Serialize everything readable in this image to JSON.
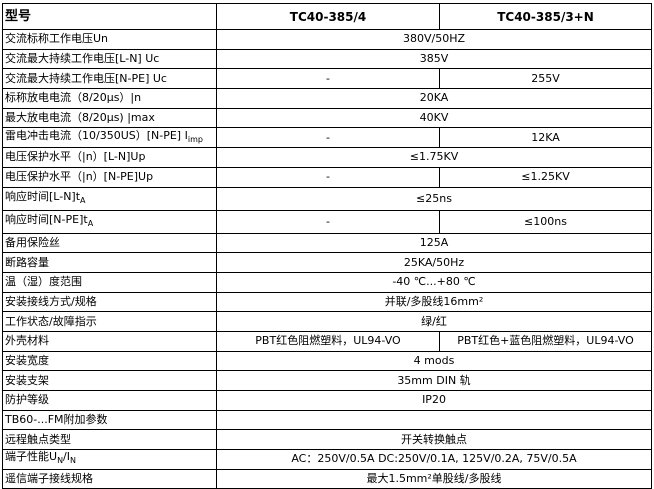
{
  "header": {
    "label": "型号",
    "model_a": "TC40-385/4",
    "model_b": "TC40-385/3+N"
  },
  "rows": [
    {
      "label": "交流标称工作电压Un",
      "value": "380V/50HZ"
    },
    {
      "label": "交流最大持续工作电压[L-N] Uc",
      "value": "385V"
    },
    {
      "label": "交流最大持续工作电压[N-PE] Uc",
      "a": "-",
      "b": "255V"
    },
    {
      "label": "标称放电电流（8/20μs）|n",
      "value": "20KA"
    },
    {
      "label": "最大放电电流（8/20μs) |max",
      "value": "40KV"
    },
    {
      "label": "雷电冲击电流（10/350US）[N-PE] I",
      "sub": "imp",
      "a": "-",
      "b": "12KA"
    },
    {
      "label": "电压保护水平（|n）[L-N]Up",
      "value": "≤1.75KV"
    },
    {
      "label": "电压保护水平（|n）[N-PE]Up",
      "a": "-",
      "b": "≤1.25KV"
    },
    {
      "label": "响应时间[L-N]t",
      "sub": "A",
      "value": "≤25ns"
    },
    {
      "label": "响应时间[N-PE]t",
      "sub": "A",
      "a": "-",
      "b": "≤100ns"
    },
    {
      "label": "备用保险丝",
      "value": "125A"
    },
    {
      "label": "断路容量",
      "value": "25KA/50Hz"
    },
    {
      "label": "温（湿）度范围",
      "value": "-40 ℃...+80 ℃"
    },
    {
      "label": "安装接线方式/规格",
      "value": "并联/多股线16mm²"
    },
    {
      "label": "工作状态/故障指示",
      "value": "绿/红"
    },
    {
      "label": "外壳材料",
      "a": "PBT红色阻燃塑料，UL94-VO",
      "b": "PBT红色+蓝色阻燃塑料，UL94-VO"
    },
    {
      "label": "安装宽度",
      "value": "4 mods"
    },
    {
      "label": "安装支架",
      "value": "35mm DIN 轨"
    },
    {
      "label": "防护等级",
      "value": "IP20"
    },
    {
      "label": "TB60-...FM附加参数",
      "value": ""
    },
    {
      "label": "远程触点类型",
      "value": "开关转换触点"
    },
    {
      "label": "端子性能U",
      "sub": "N",
      "label_tail": "/I",
      "sub2": "N",
      "value": "AC：250V/0.5A  DC:250V/0.1A, 125V/0.2A, 75V/0.5A"
    },
    {
      "label": "遥信端子接线规格",
      "value": "最大1.5mm²单股线/多股线"
    }
  ]
}
